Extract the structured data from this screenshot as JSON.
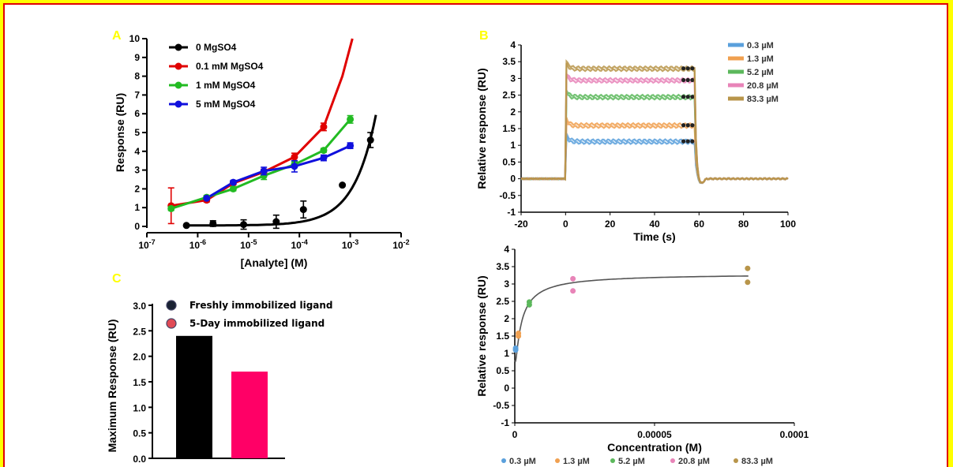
{
  "panels": {
    "A": "A",
    "B": "B",
    "C": "C"
  },
  "chart_data": [
    {
      "id": "A",
      "type": "scatter",
      "xlabel": "[Analyte] (M)",
      "ylabel": "Response (RU)",
      "x_scale": "log",
      "xlim": [
        1e-07,
        0.01
      ],
      "ylim": [
        0,
        10
      ],
      "x_ticks": [
        "10-7",
        "10-6",
        "10-5",
        "10-4",
        "10-3",
        "10-2"
      ],
      "y_ticks": [
        "0",
        "1",
        "2",
        "3",
        "4",
        "5",
        "6",
        "7",
        "8",
        "9",
        "10"
      ],
      "legend_position": "top-left",
      "series": [
        {
          "name": "0 MgSO4",
          "color": "#000000",
          "x": [
            6e-07,
            2e-06,
            8e-06,
            3.5e-05,
            0.00012,
            0.0007,
            0.0025
          ],
          "y": [
            0.05,
            0.15,
            0.1,
            0.25,
            0.9,
            2.2,
            4.6
          ],
          "err": [
            0.05,
            0.15,
            0.25,
            0.35,
            0.45,
            0.05,
            0.4
          ]
        },
        {
          "name": "0.1 mM MgSO4",
          "color": "#e00000",
          "x": [
            3e-07,
            1.5e-06,
            5e-06,
            2e-05,
            8e-05,
            0.0003
          ],
          "y": [
            1.1,
            1.4,
            2.3,
            2.9,
            3.7,
            5.3
          ],
          "err": [
            0.95,
            0.1,
            0.1,
            0.15,
            0.2,
            0.2
          ]
        },
        {
          "name": "1 mM MgSO4",
          "color": "#22bb22",
          "x": [
            3e-07,
            1.5e-06,
            5e-06,
            2e-05,
            8e-05,
            0.0003,
            0.001
          ],
          "y": [
            0.95,
            1.55,
            2.0,
            2.7,
            3.3,
            4.05,
            5.7
          ],
          "err": [
            0.1,
            0.1,
            0.1,
            0.2,
            0.15,
            0.1,
            0.2
          ]
        },
        {
          "name": "5 mM MgSO4",
          "color": "#1010dd",
          "x": [
            1.5e-06,
            5e-06,
            2e-05,
            8e-05,
            0.0003,
            0.001
          ],
          "y": [
            1.5,
            2.35,
            2.95,
            3.2,
            3.65,
            4.3
          ],
          "err": [
            0.05,
            0.1,
            0.2,
            0.3,
            0.15,
            0.15
          ]
        }
      ]
    },
    {
      "id": "B",
      "type": "line",
      "xlabel": "Time (s)",
      "ylabel": "Relative response (RU)",
      "xlim": [
        -20,
        100
      ],
      "ylim": [
        -1,
        4
      ],
      "x_ticks": [
        "-20",
        "0",
        "20",
        "40",
        "60",
        "80",
        "100"
      ],
      "y_ticks": [
        "-1",
        "-0.5",
        "0",
        "0.5",
        "1",
        "1.5",
        "2",
        "2.5",
        "3",
        "3.5",
        "4"
      ],
      "legend_position": "top-right",
      "series": [
        {
          "name": "0.3 µM",
          "color": "#5aa0dc",
          "plateau": 1.12
        },
        {
          "name": "1.3 µM",
          "color": "#f0a050",
          "plateau": 1.6
        },
        {
          "name": "5.2 µM",
          "color": "#5cb85c",
          "plateau": 2.45
        },
        {
          "name": "20.8 µM",
          "color": "#e884b8",
          "plateau": 2.95
        },
        {
          "name": "83.3 µM",
          "color": "#b8954a",
          "plateau": 3.3
        }
      ]
    },
    {
      "id": "C",
      "type": "bar",
      "ylabel": "Maximum Response (RU)",
      "ylim": [
        0,
        3
      ],
      "y_ticks": [
        "0.0",
        "0.5",
        "1.0",
        "1.5",
        "2.0",
        "2.5",
        "3.0"
      ],
      "legend_position": "top-right",
      "categories": [
        "Freshly immobilized ligand",
        "5-Day immobilized ligand"
      ],
      "values": [
        2.4,
        1.7
      ],
      "colors": [
        "#000000",
        "#ff0066"
      ]
    },
    {
      "id": "D",
      "type": "scatter",
      "xlabel": "Concentration (M)",
      "ylabel": "Relative response (RU)",
      "xlim": [
        0,
        0.0001
      ],
      "ylim": [
        -1,
        4
      ],
      "x_ticks": [
        "0",
        "0.00005",
        "0.0001"
      ],
      "y_ticks": [
        "-1",
        "-0.5",
        "0",
        "0.5",
        "1",
        "1.5",
        "2",
        "2.5",
        "3",
        "3.5",
        "4"
      ],
      "legend_position": "bottom",
      "series": [
        {
          "name": "0.3 µM",
          "color": "#5aa0dc",
          "x": [
            3e-07,
            3e-07
          ],
          "y": [
            1.1,
            1.15
          ]
        },
        {
          "name": "1.3 µM",
          "color": "#f0a050",
          "x": [
            1.3e-06,
            1.3e-06
          ],
          "y": [
            1.5,
            1.58
          ]
        },
        {
          "name": "5.2 µM",
          "color": "#5cb85c",
          "x": [
            5.2e-06,
            5.2e-06
          ],
          "y": [
            2.4,
            2.48
          ]
        },
        {
          "name": "20.8 µM",
          "color": "#e884b8",
          "x": [
            2.08e-05,
            2.08e-05
          ],
          "y": [
            2.8,
            3.15
          ]
        },
        {
          "name": "83.3 µM",
          "color": "#b8954a",
          "x": [
            8.33e-05,
            8.33e-05
          ],
          "y": [
            3.05,
            3.45
          ]
        }
      ],
      "fit": {
        "Rmax": 3.3,
        "KD": 1.8e-06,
        "color": "#555555"
      }
    }
  ]
}
